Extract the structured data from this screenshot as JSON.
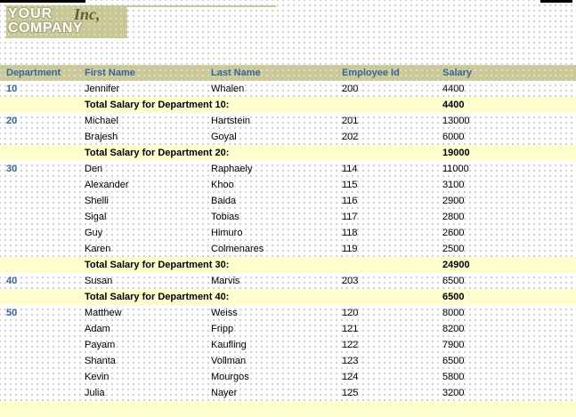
{
  "logo": {
    "line1": "YOUR",
    "line2": "COMPANY",
    "suffix": "Inc,"
  },
  "table": {
    "columns": [
      "Department",
      "First Name",
      "Last Name",
      "Employee Id",
      "Salary"
    ],
    "groups": [
      {
        "department": "10",
        "rows": [
          {
            "first_name": "Jennifer",
            "last_name": "Whalen",
            "employee_id": "200",
            "salary": "4400"
          }
        ],
        "total_label": "Total Salary for Department 10:",
        "total": "4400"
      },
      {
        "department": "20",
        "rows": [
          {
            "first_name": "Michael",
            "last_name": "Hartstein",
            "employee_id": "201",
            "salary": "13000"
          },
          {
            "first_name": "Brajesh",
            "last_name": "Goyal",
            "employee_id": "202",
            "salary": "6000"
          }
        ],
        "total_label": "Total Salary for Department 20:",
        "total": "19000"
      },
      {
        "department": "30",
        "rows": [
          {
            "first_name": "Den",
            "last_name": "Raphaely",
            "employee_id": "114",
            "salary": "11000"
          },
          {
            "first_name": "Alexander",
            "last_name": "Khoo",
            "employee_id": "115",
            "salary": "3100"
          },
          {
            "first_name": "Shelli",
            "last_name": "Baida",
            "employee_id": "116",
            "salary": "2900"
          },
          {
            "first_name": "Sigal",
            "last_name": "Tobias",
            "employee_id": "117",
            "salary": "2800"
          },
          {
            "first_name": "Guy",
            "last_name": "Himuro",
            "employee_id": "118",
            "salary": "2600"
          },
          {
            "first_name": "Karen",
            "last_name": "Colmenares",
            "employee_id": "119",
            "salary": "2500"
          }
        ],
        "total_label": "Total Salary for Department 30:",
        "total": "24900"
      },
      {
        "department": "40",
        "rows": [
          {
            "first_name": "Susan",
            "last_name": "Marvis",
            "employee_id": "203",
            "salary": "6500"
          }
        ],
        "total_label": "Total Salary for Department 40:",
        "total": "6500"
      },
      {
        "department": "50",
        "rows": [
          {
            "first_name": "Matthew",
            "last_name": "Weiss",
            "employee_id": "120",
            "salary": "8000"
          },
          {
            "first_name": "Adam",
            "last_name": "Fripp",
            "employee_id": "121",
            "salary": "8200"
          },
          {
            "first_name": "Payam",
            "last_name": "Kaufling",
            "employee_id": "122",
            "salary": "7900"
          },
          {
            "first_name": "Shanta",
            "last_name": "Vollman",
            "employee_id": "123",
            "salary": "6500"
          },
          {
            "first_name": "Kevin",
            "last_name": "Mourgos",
            "employee_id": "124",
            "salary": "5800"
          },
          {
            "first_name": "Julia",
            "last_name": "Nayer",
            "employee_id": "125",
            "salary": "3200"
          }
        ],
        "total_label": "",
        "total": ""
      }
    ]
  }
}
